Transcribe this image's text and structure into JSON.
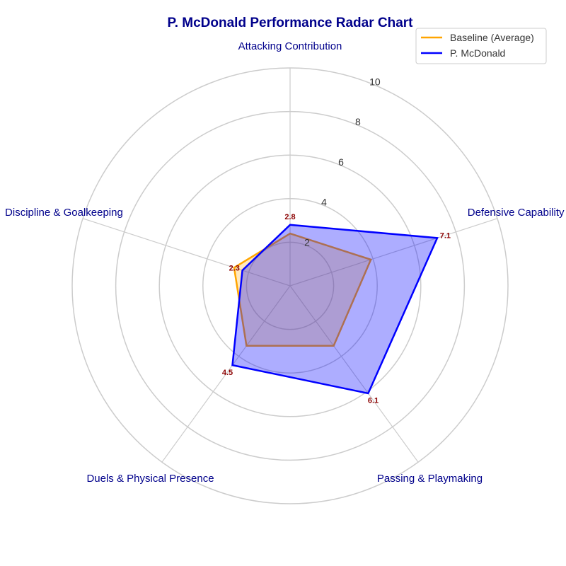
{
  "chart_data": {
    "type": "radar",
    "title": "P. McDonald Performance Radar Chart",
    "categories": [
      "Attacking Contribution",
      "Defensive Capability",
      "Passing & Playmaking",
      "Duels & Physical Presence",
      "Discipline & Goalkeeping"
    ],
    "rlim": [
      0,
      10
    ],
    "rticks": [
      2,
      4,
      6,
      8,
      10
    ],
    "rtick_labels": [
      "2",
      "4",
      "6",
      "8",
      "10"
    ],
    "grid": true,
    "legend_position": "top-right",
    "series": [
      {
        "name": "Baseline (Average)",
        "values": [
          2.4,
          3.9,
          3.4,
          3.4,
          2.7
        ],
        "color": "#ffa500",
        "fill": false
      },
      {
        "name": "P. McDonald",
        "values": [
          2.8,
          7.1,
          6.1,
          4.5,
          2.3
        ],
        "color": "#0000ff",
        "fill": true,
        "fill_color": "#0000ff"
      }
    ],
    "data_labels": [
      "2.8",
      "7.1",
      "6.1",
      "4.5",
      "2.3"
    ],
    "data_label_color": "#8b0000"
  }
}
